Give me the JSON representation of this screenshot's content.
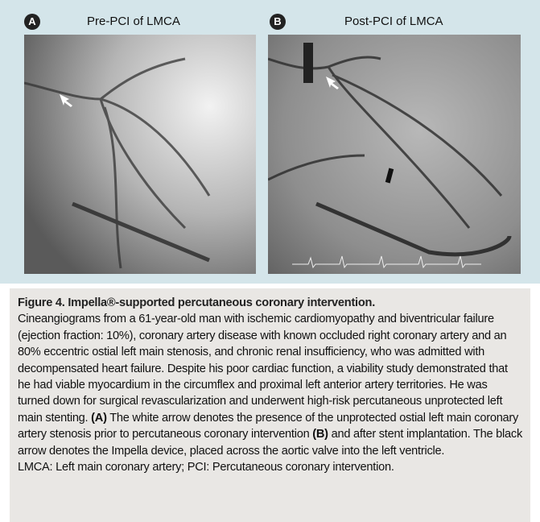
{
  "panels": [
    {
      "label": "A",
      "title": "Pre-PCI of LMCA"
    },
    {
      "label": "B",
      "title": "Post-PCI of LMCA"
    }
  ],
  "caption": {
    "title": "Figure 4. Impella®-supported percutaneous coronary intervention.",
    "body": [
      "Cineangiograms from a 61-year-old man with ischemic cardiomyopathy and biventricular failure (ejection fraction: 10%), coronary artery disease with known occluded right coronary artery and an 80% eccentric ostial left main stenosis, and chronic renal insufficiency, who was admitted with decompensated heart failure. Despite his poor cardiac function, a viability study demonstrated that he had viable myocardium in the circumflex and proximal left anterior artery territories. He was turned down for surgical revascularization and underwent high-risk percutaneous unprotected left main stenting. ",
      "(A)",
      " The white arrow denotes the presence of the unprotected ostial left main coronary artery stenosis prior to percutaneous coronary intervention ",
      "(B)",
      " and after stent implantation. The black arrow denotes the Impella device, placed across the aortic valve into the left ventricle."
    ],
    "abbreviations": "LMCA: Left main coronary artery; PCI: Percutaneous coronary intervention."
  }
}
